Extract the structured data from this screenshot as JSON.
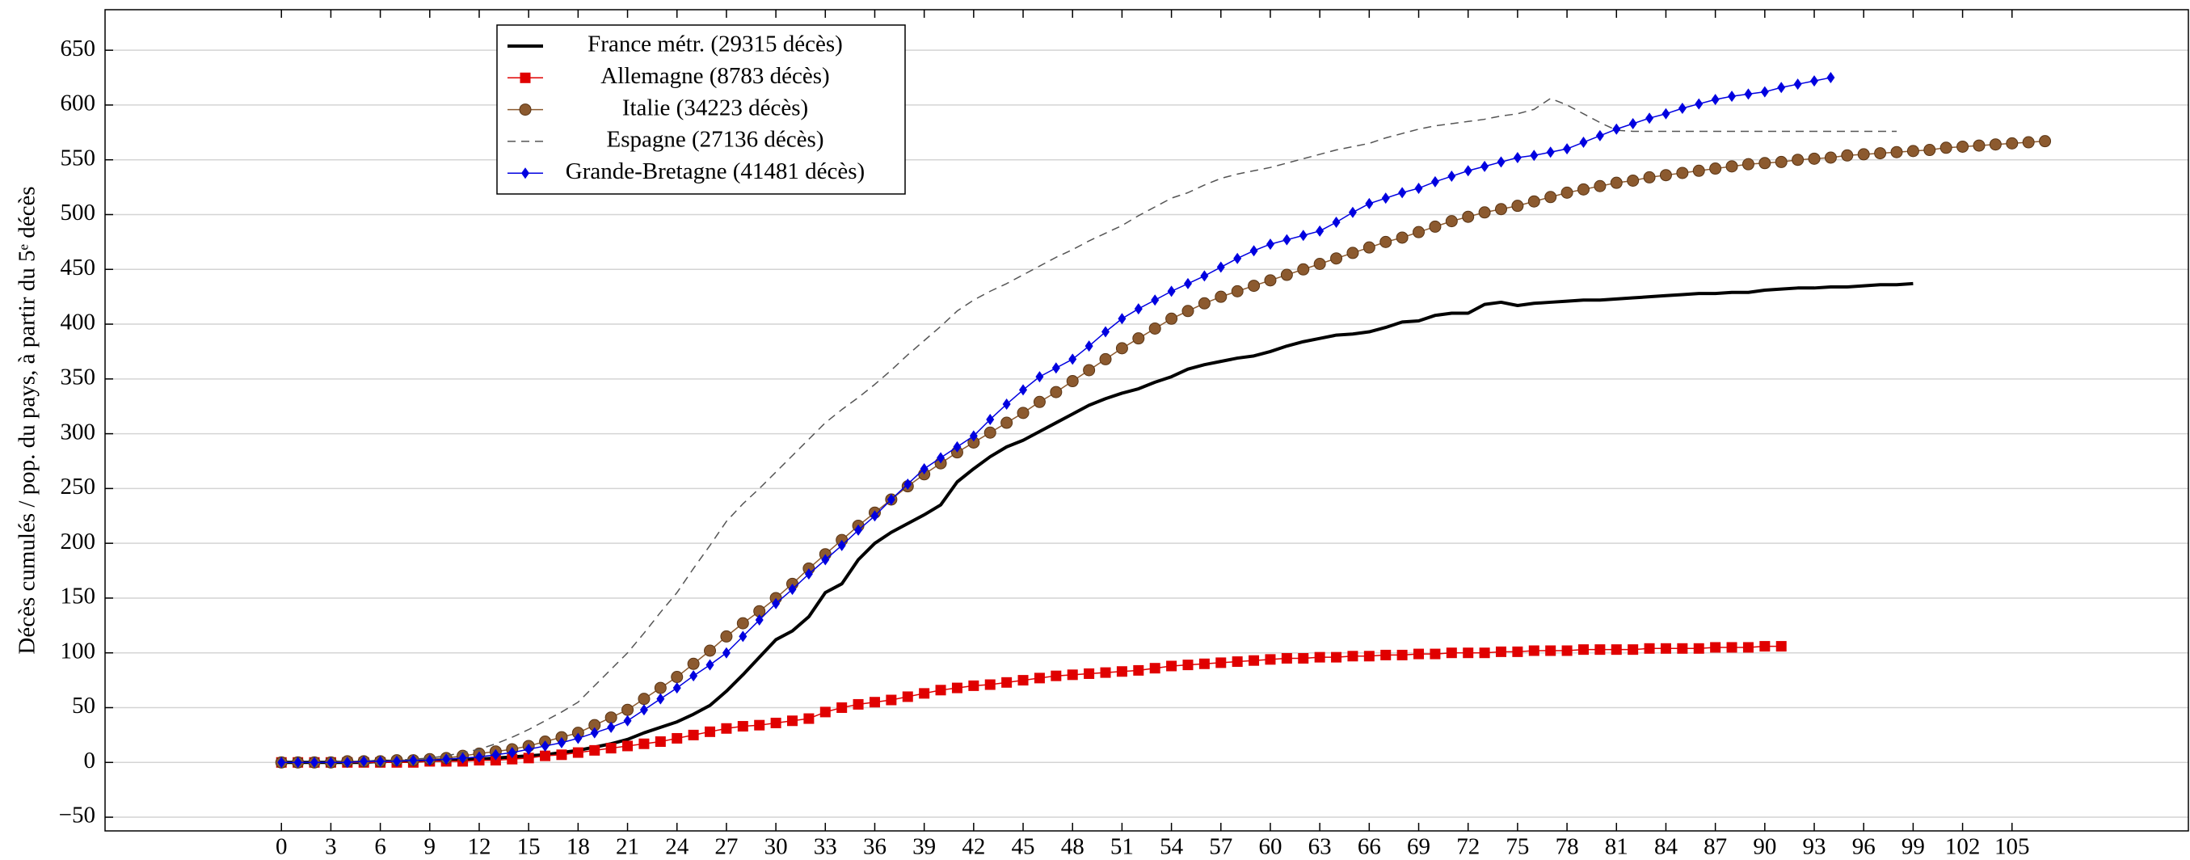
{
  "chart_data": {
    "type": "line",
    "y_label": "Décès cumulés / pop. du pays, à partir du 5ᵉ décès",
    "xlim": [
      -10.7,
      115.7
    ],
    "ylim": [
      -62.5,
      687
    ],
    "xticks": [
      0,
      3,
      6,
      9,
      12,
      15,
      18,
      21,
      24,
      27,
      30,
      33,
      36,
      39,
      42,
      45,
      48,
      51,
      54,
      57,
      60,
      63,
      66,
      69,
      72,
      75,
      78,
      81,
      84,
      87,
      90,
      93,
      96,
      99,
      102,
      105
    ],
    "yticks": [
      {
        "value": -50,
        "label": "−50"
      },
      0,
      50,
      100,
      150,
      200,
      250,
      300,
      350,
      400,
      450,
      500,
      550,
      600,
      650
    ],
    "grid": "y",
    "x": [
      0,
      1,
      2,
      3,
      4,
      5,
      6,
      7,
      8,
      9,
      10,
      11,
      12,
      13,
      14,
      15,
      16,
      17,
      18,
      19,
      20,
      21,
      22,
      23,
      24,
      25,
      26,
      27,
      28,
      29,
      30,
      31,
      32,
      33,
      34,
      35,
      36,
      37,
      38,
      39,
      40,
      41,
      42,
      43,
      44,
      45,
      46,
      47,
      48,
      49,
      50,
      51,
      52,
      53,
      54,
      55,
      56,
      57,
      58,
      59,
      60,
      61,
      62,
      63,
      64,
      65,
      66,
      67,
      68,
      69,
      70,
      71,
      72,
      73,
      74,
      75,
      76,
      77,
      78,
      79,
      80,
      81,
      82,
      83,
      84,
      85,
      86,
      87,
      88,
      89,
      90,
      91,
      92,
      93,
      94,
      95,
      96,
      97,
      98,
      99,
      100,
      101,
      102,
      103,
      104,
      105,
      106,
      107
    ],
    "series": [
      {
        "name": "France métr. (29315 décès)",
        "color": "#000000",
        "linestyle": "solid",
        "width": 4,
        "marker": "none",
        "values": [
          0,
          0,
          0,
          0,
          0,
          0,
          1,
          1,
          1,
          2,
          2,
          3,
          3,
          4,
          5,
          6,
          7,
          9,
          11,
          14,
          17,
          21,
          27,
          32,
          37,
          44,
          52,
          65,
          80,
          96,
          112,
          120,
          133,
          155,
          163,
          185,
          200,
          210,
          218,
          226,
          235,
          256,
          268,
          279,
          288,
          294,
          302,
          310,
          318,
          326,
          332,
          337,
          341,
          347,
          352,
          359,
          363,
          366,
          369,
          371,
          375,
          380,
          384,
          387,
          390,
          391,
          393,
          397,
          402,
          403,
          408,
          410,
          410,
          418,
          420,
          417,
          419,
          420,
          421,
          422,
          422,
          423,
          424,
          425,
          426,
          427,
          428,
          428,
          429,
          429,
          431,
          432,
          433,
          433,
          434,
          434,
          435,
          436,
          436,
          437,
          null,
          null,
          null,
          null,
          null,
          null,
          null,
          null
        ]
      },
      {
        "name": "Allemagne (8783 décès)",
        "color": "#e00000",
        "linestyle": "solid",
        "width": 1.5,
        "marker": "square",
        "values": [
          0,
          0,
          0,
          0,
          0,
          0,
          0,
          0,
          0,
          1,
          1,
          1,
          2,
          2,
          3,
          4,
          6,
          7,
          9,
          11,
          13,
          15,
          17,
          19,
          22,
          25,
          28,
          31,
          33,
          34,
          36,
          38,
          40,
          46,
          50,
          53,
          55,
          57,
          60,
          63,
          66,
          68,
          70,
          71,
          73,
          75,
          77,
          79,
          80,
          81,
          82,
          83,
          84,
          86,
          88,
          89,
          90,
          91,
          92,
          93,
          94,
          95,
          95,
          96,
          96,
          97,
          97,
          98,
          98,
          99,
          99,
          100,
          100,
          100,
          101,
          101,
          102,
          102,
          102,
          103,
          103,
          103,
          103,
          104,
          104,
          104,
          104,
          105,
          105,
          105,
          106,
          106,
          null,
          null,
          null,
          null,
          null,
          null,
          null,
          null,
          null,
          null,
          null,
          null,
          null,
          null,
          null,
          null
        ]
      },
      {
        "name": "Italie (34223 décès)",
        "color": "#8c5a2f",
        "linestyle": "solid",
        "width": 1.5,
        "marker": "circle",
        "values": [
          0,
          0,
          0,
          0,
          1,
          1,
          1,
          2,
          2,
          3,
          4,
          6,
          8,
          10,
          12,
          15,
          19,
          23,
          27,
          34,
          41,
          48,
          58,
          68,
          78,
          90,
          102,
          115,
          127,
          138,
          150,
          163,
          177,
          190,
          203,
          216,
          228,
          240,
          252,
          263,
          273,
          283,
          292,
          301,
          310,
          319,
          329,
          338,
          348,
          358,
          368,
          378,
          387,
          396,
          405,
          412,
          419,
          425,
          430,
          435,
          440,
          445,
          450,
          455,
          460,
          465,
          470,
          475,
          479,
          484,
          489,
          494,
          498,
          502,
          505,
          508,
          512,
          516,
          520,
          523,
          526,
          529,
          531,
          534,
          536,
          538,
          540,
          542,
          544,
          546,
          547,
          548,
          550,
          551,
          552,
          554,
          555,
          556,
          557,
          558,
          559,
          561,
          562,
          563,
          564,
          565,
          566,
          567
        ]
      },
      {
        "name": "Espagne (27136 décès)",
        "color": "#555555",
        "linestyle": "dashed",
        "width": 1.5,
        "marker": "none",
        "values": [
          0,
          0,
          0,
          0,
          0,
          1,
          1,
          2,
          3,
          4,
          6,
          9,
          12,
          17,
          23,
          30,
          38,
          46,
          55,
          70,
          85,
          100,
          118,
          137,
          155,
          177,
          198,
          220,
          236,
          250,
          265,
          280,
          295,
          310,
          322,
          333,
          345,
          358,
          372,
          385,
          398,
          412,
          422,
          430,
          437,
          445,
          453,
          461,
          468,
          476,
          483,
          490,
          499,
          507,
          515,
          520,
          527,
          533,
          537,
          540,
          543,
          547,
          551,
          555,
          559,
          562,
          565,
          570,
          574,
          578,
          581,
          583,
          585,
          587,
          590,
          592,
          596,
          606,
          600,
          592,
          584,
          577,
          576,
          576,
          576,
          576,
          576,
          576,
          576,
          576,
          576,
          576,
          576,
          576,
          576,
          576,
          576,
          576,
          576,
          null,
          null,
          null,
          null,
          null,
          null,
          null,
          null,
          null
        ]
      },
      {
        "name": "Grande-Bretagne (41481 décès)",
        "color": "#0000e0",
        "linestyle": "solid",
        "width": 1.5,
        "marker": "diamond",
        "values": [
          0,
          0,
          0,
          0,
          0,
          1,
          1,
          1,
          2,
          2,
          3,
          4,
          5,
          7,
          9,
          12,
          15,
          18,
          22,
          27,
          32,
          38,
          48,
          58,
          68,
          79,
          89,
          100,
          115,
          130,
          145,
          158,
          172,
          185,
          198,
          212,
          225,
          240,
          254,
          268,
          278,
          288,
          298,
          313,
          327,
          340,
          352,
          360,
          368,
          380,
          393,
          405,
          414,
          422,
          430,
          437,
          444,
          452,
          460,
          467,
          473,
          477,
          481,
          485,
          493,
          502,
          510,
          515,
          520,
          524,
          530,
          535,
          540,
          544,
          548,
          552,
          554,
          557,
          560,
          566,
          572,
          578,
          583,
          588,
          592,
          597,
          601,
          605,
          608,
          610,
          612,
          616,
          619,
          622,
          625,
          null,
          null,
          null,
          null,
          null,
          null,
          null,
          null,
          null,
          null,
          null,
          null,
          null
        ]
      }
    ]
  }
}
